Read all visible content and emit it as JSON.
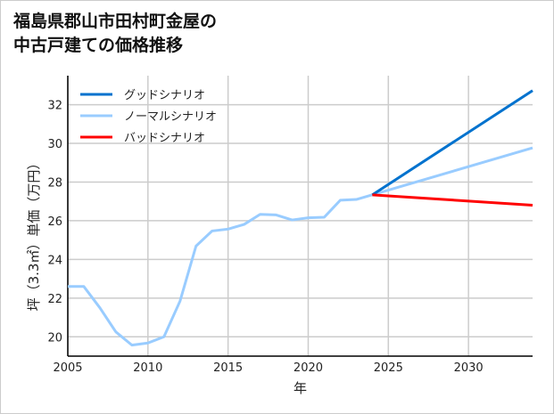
{
  "title_lines": [
    "福島県郡山市田村町金屋の",
    "中古戸建ての価格推移"
  ],
  "chart_data": {
    "type": "line",
    "title": "福島県郡山市田村町金屋の中古戸建ての価格推移",
    "xlabel": "年",
    "ylabel": "坪（3.3㎡）単価（万円）",
    "xlim": [
      2005,
      2034
    ],
    "ylim": [
      19,
      33.5
    ],
    "xticks": [
      2005,
      2010,
      2015,
      2020,
      2025,
      2030
    ],
    "yticks": [
      20,
      22,
      24,
      26,
      28,
      30,
      32
    ],
    "grid": true,
    "legend_position": "top-left",
    "series": [
      {
        "name": "グッドシナリオ",
        "color": "#0072CE",
        "x": [
          2024,
          2034
        ],
        "y": [
          27.34,
          32.73
        ]
      },
      {
        "name": "ノーマルシナリオ",
        "color": "#99CCFF",
        "x": [
          2005,
          2006,
          2007,
          2008,
          2009,
          2010,
          2011,
          2012,
          2013,
          2014,
          2015,
          2016,
          2017,
          2018,
          2019,
          2020,
          2021,
          2022,
          2023,
          2024,
          2034
        ],
        "y": [
          22.6,
          22.6,
          21.5,
          20.25,
          19.57,
          19.68,
          20.0,
          21.84,
          24.69,
          25.47,
          25.57,
          25.81,
          26.33,
          26.3,
          26.04,
          26.15,
          26.18,
          27.06,
          27.1,
          27.34,
          29.77
        ]
      },
      {
        "name": "バッドシナリオ",
        "color": "#FF0000",
        "x": [
          2024,
          2034
        ],
        "y": [
          27.34,
          26.8
        ]
      }
    ]
  }
}
